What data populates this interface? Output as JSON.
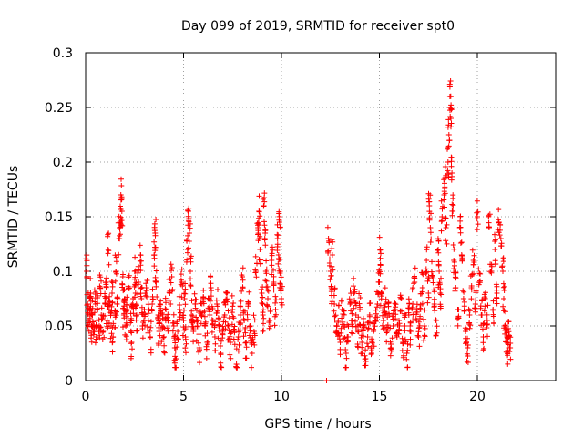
{
  "chart_data": {
    "type": "scatter",
    "title": "Day 099 of 2019, SRMTID for receiver spt0",
    "xlabel": "GPS time / hours",
    "ylabel": "SRMTID / TECUs",
    "xlim": [
      0,
      24
    ],
    "ylim": [
      0,
      0.3
    ],
    "x_ticks": [
      0,
      5,
      10,
      15,
      20
    ],
    "y_ticks": [
      0,
      0.05,
      0.1,
      0.15,
      0.2,
      0.25,
      0.3
    ],
    "x_tick_labels": [
      "0",
      "5",
      "10",
      "15",
      "20"
    ],
    "y_tick_labels": [
      "0",
      "0.05",
      "0.1",
      "0.15",
      "0.2",
      "0.25",
      "0.3"
    ],
    "grid": true,
    "marker": "+",
    "marker_color": "#ff0000",
    "series": [
      {
        "name": "spt0",
        "points": [
          [
            0.05,
            0.1
          ],
          [
            0.1,
            0.07
          ],
          [
            0.15,
            0.055
          ],
          [
            0.2,
            0.065
          ],
          [
            0.25,
            0.08
          ],
          [
            0.3,
            0.05
          ],
          [
            0.35,
            0.06
          ],
          [
            0.4,
            0.045
          ],
          [
            0.5,
            0.07
          ],
          [
            0.55,
            0.04
          ],
          [
            0.6,
            0.065
          ],
          [
            0.7,
            0.05
          ],
          [
            0.75,
            0.085
          ],
          [
            0.8,
            0.06
          ],
          [
            0.9,
            0.045
          ],
          [
            1.0,
            0.07
          ],
          [
            1.05,
            0.09
          ],
          [
            1.1,
            0.055
          ],
          [
            1.15,
            0.12
          ],
          [
            1.2,
            0.065
          ],
          [
            1.3,
            0.05
          ],
          [
            1.35,
            0.08
          ],
          [
            1.4,
            0.04
          ],
          [
            1.5,
            0.06
          ],
          [
            1.55,
            0.1
          ],
          [
            1.6,
            0.07
          ],
          [
            1.7,
            0.13
          ],
          [
            1.75,
            0.145
          ],
          [
            1.8,
            0.17
          ],
          [
            1.85,
            0.155
          ],
          [
            1.9,
            0.095
          ],
          [
            1.95,
            0.06
          ],
          [
            2.0,
            0.075
          ],
          [
            2.05,
            0.05
          ],
          [
            2.1,
            0.065
          ],
          [
            2.2,
            0.085
          ],
          [
            2.3,
            0.055
          ],
          [
            2.35,
            0.035
          ],
          [
            2.4,
            0.07
          ],
          [
            2.5,
            0.1
          ],
          [
            2.55,
            0.08
          ],
          [
            2.6,
            0.06
          ],
          [
            2.7,
            0.09
          ],
          [
            2.8,
            0.115
          ],
          [
            2.85,
            0.075
          ],
          [
            2.9,
            0.05
          ],
          [
            3.0,
            0.065
          ],
          [
            3.1,
            0.085
          ],
          [
            3.2,
            0.055
          ],
          [
            3.3,
            0.04
          ],
          [
            3.4,
            0.07
          ],
          [
            3.5,
            0.115
          ],
          [
            3.55,
            0.135
          ],
          [
            3.6,
            0.09
          ],
          [
            3.7,
            0.06
          ],
          [
            3.75,
            0.045
          ],
          [
            3.8,
            0.07
          ],
          [
            3.9,
            0.05
          ],
          [
            4.0,
            0.04
          ],
          [
            4.1,
            0.065
          ],
          [
            4.2,
            0.055
          ],
          [
            4.3,
            0.08
          ],
          [
            4.4,
            0.095
          ],
          [
            4.5,
            0.05
          ],
          [
            4.55,
            0.03
          ],
          [
            4.6,
            0.02
          ],
          [
            4.7,
            0.045
          ],
          [
            4.8,
            0.065
          ],
          [
            4.9,
            0.09
          ],
          [
            5.0,
            0.055
          ],
          [
            5.05,
            0.075
          ],
          [
            5.1,
            0.04
          ],
          [
            5.2,
            0.12
          ],
          [
            5.25,
            0.155
          ],
          [
            5.3,
            0.135
          ],
          [
            5.35,
            0.1
          ],
          [
            5.4,
            0.06
          ],
          [
            5.5,
            0.045
          ],
          [
            5.6,
            0.07
          ],
          [
            5.7,
            0.05
          ],
          [
            5.8,
            0.03
          ],
          [
            5.9,
            0.06
          ],
          [
            6.0,
            0.075
          ],
          [
            6.1,
            0.05
          ],
          [
            6.2,
            0.035
          ],
          [
            6.3,
            0.065
          ],
          [
            6.4,
            0.085
          ],
          [
            6.5,
            0.055
          ],
          [
            6.6,
            0.04
          ],
          [
            6.7,
            0.07
          ],
          [
            6.8,
            0.05
          ],
          [
            6.9,
            0.025
          ],
          [
            7.0,
            0.045
          ],
          [
            7.1,
            0.06
          ],
          [
            7.2,
            0.08
          ],
          [
            7.3,
            0.05
          ],
          [
            7.4,
            0.035
          ],
          [
            7.5,
            0.065
          ],
          [
            7.6,
            0.045
          ],
          [
            7.7,
            0.015
          ],
          [
            7.8,
            0.04
          ],
          [
            7.9,
            0.06
          ],
          [
            8.0,
            0.095
          ],
          [
            8.1,
            0.055
          ],
          [
            8.2,
            0.035
          ],
          [
            8.3,
            0.07
          ],
          [
            8.4,
            0.05
          ],
          [
            8.5,
            0.025
          ],
          [
            8.6,
            0.045
          ],
          [
            8.7,
            0.1
          ],
          [
            8.8,
            0.14
          ],
          [
            8.85,
            0.155
          ],
          [
            8.9,
            0.12
          ],
          [
            9.0,
            0.08
          ],
          [
            9.05,
            0.06
          ],
          [
            9.1,
            0.16
          ],
          [
            9.15,
            0.13
          ],
          [
            9.2,
            0.1
          ],
          [
            9.3,
            0.075
          ],
          [
            9.4,
            0.055
          ],
          [
            9.5,
            0.11
          ],
          [
            9.6,
            0.09
          ],
          [
            9.7,
            0.065
          ],
          [
            9.8,
            0.13
          ],
          [
            9.85,
            0.115
          ],
          [
            9.9,
            0.145
          ],
          [
            9.95,
            0.1
          ],
          [
            10.0,
            0.075
          ],
          [
            12.3,
            0.0
          ],
          [
            12.4,
            0.13
          ],
          [
            12.5,
            0.1
          ],
          [
            12.55,
            0.085
          ],
          [
            12.6,
            0.115
          ],
          [
            12.7,
            0.07
          ],
          [
            12.8,
            0.045
          ],
          [
            12.9,
            0.055
          ],
          [
            13.0,
            0.035
          ],
          [
            13.1,
            0.065
          ],
          [
            13.2,
            0.05
          ],
          [
            13.3,
            0.025
          ],
          [
            13.4,
            0.04
          ],
          [
            13.5,
            0.07
          ],
          [
            13.6,
            0.055
          ],
          [
            13.7,
            0.08
          ],
          [
            13.8,
            0.06
          ],
          [
            13.9,
            0.045
          ],
          [
            14.0,
            0.065
          ],
          [
            14.1,
            0.035
          ],
          [
            14.2,
            0.05
          ],
          [
            14.3,
            0.02
          ],
          [
            14.4,
            0.04
          ],
          [
            14.5,
            0.06
          ],
          [
            14.6,
            0.025
          ],
          [
            14.7,
            0.045
          ],
          [
            14.8,
            0.055
          ],
          [
            14.9,
            0.07
          ],
          [
            15.0,
            0.09
          ],
          [
            15.05,
            0.12
          ],
          [
            15.1,
            0.08
          ],
          [
            15.2,
            0.055
          ],
          [
            15.3,
            0.07
          ],
          [
            15.4,
            0.045
          ],
          [
            15.5,
            0.06
          ],
          [
            15.6,
            0.03
          ],
          [
            15.7,
            0.05
          ],
          [
            15.8,
            0.065
          ],
          [
            15.9,
            0.04
          ],
          [
            16.0,
            0.055
          ],
          [
            16.1,
            0.075
          ],
          [
            16.2,
            0.035
          ],
          [
            16.3,
            0.05
          ],
          [
            16.4,
            0.025
          ],
          [
            16.5,
            0.06
          ],
          [
            16.6,
            0.045
          ],
          [
            16.7,
            0.07
          ],
          [
            16.8,
            0.09
          ],
          [
            16.9,
            0.055
          ],
          [
            17.0,
            0.04
          ],
          [
            17.1,
            0.065
          ],
          [
            17.2,
            0.085
          ],
          [
            17.3,
            0.05
          ],
          [
            17.4,
            0.11
          ],
          [
            17.5,
            0.08
          ],
          [
            17.55,
            0.16
          ],
          [
            17.6,
            0.14
          ],
          [
            17.7,
            0.095
          ],
          [
            17.8,
            0.07
          ],
          [
            17.9,
            0.055
          ],
          [
            18.0,
            0.12
          ],
          [
            18.05,
            0.1
          ],
          [
            18.1,
            0.08
          ],
          [
            18.2,
            0.15
          ],
          [
            18.3,
            0.17
          ],
          [
            18.35,
            0.185
          ],
          [
            18.4,
            0.14
          ],
          [
            18.5,
            0.2
          ],
          [
            18.55,
            0.225
          ],
          [
            18.6,
            0.26
          ],
          [
            18.65,
            0.24
          ],
          [
            18.7,
            0.19
          ],
          [
            18.75,
            0.155
          ],
          [
            18.8,
            0.11
          ],
          [
            18.9,
            0.085
          ],
          [
            19.0,
            0.065
          ],
          [
            19.1,
            0.14
          ],
          [
            19.2,
            0.115
          ],
          [
            19.3,
            0.075
          ],
          [
            19.4,
            0.045
          ],
          [
            19.5,
            0.03
          ],
          [
            19.6,
            0.06
          ],
          [
            19.7,
            0.085
          ],
          [
            19.8,
            0.11
          ],
          [
            19.9,
            0.07
          ],
          [
            20.0,
            0.15
          ],
          [
            20.1,
            0.09
          ],
          [
            20.2,
            0.06
          ],
          [
            20.3,
            0.04
          ],
          [
            20.4,
            0.075
          ],
          [
            20.5,
            0.055
          ],
          [
            20.6,
            0.14
          ],
          [
            20.7,
            0.1
          ],
          [
            20.8,
            0.065
          ],
          [
            20.9,
            0.12
          ],
          [
            21.0,
            0.08
          ],
          [
            21.1,
            0.145
          ],
          [
            21.2,
            0.13
          ],
          [
            21.3,
            0.1
          ],
          [
            21.35,
            0.075
          ],
          [
            21.4,
            0.05
          ],
          [
            21.5,
            0.035
          ],
          [
            21.55,
            0.025
          ],
          [
            21.6,
            0.04
          ],
          [
            21.65,
            0.03
          ]
        ]
      }
    ]
  }
}
